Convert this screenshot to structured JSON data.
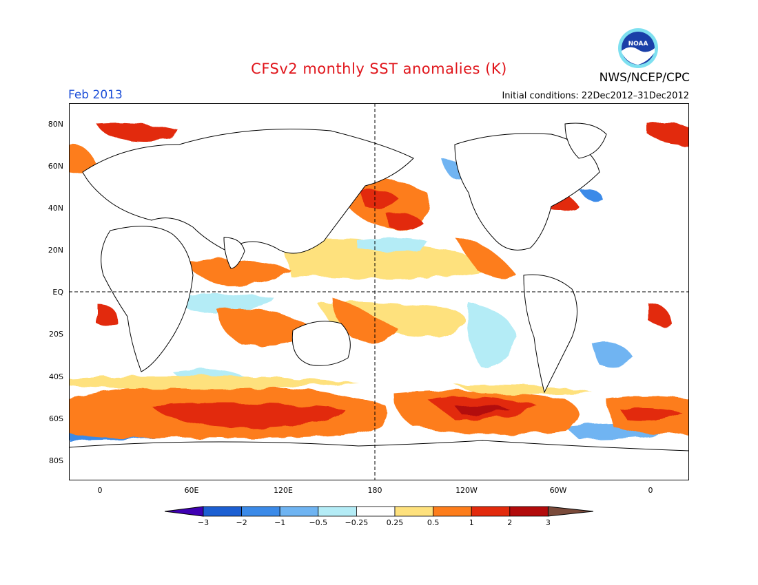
{
  "title": "CFSv2 monthly SST anomalies (K)",
  "month_label": "Feb 2013",
  "init_label": "Initial conditions: 22Dec2012–31Dec2012",
  "org_label": "NWS/NCEP/CPC",
  "logo_text": "NOAA",
  "lat_labels": [
    "80N",
    "60N",
    "40N",
    "20N",
    "EQ",
    "20S",
    "40S",
    "60S",
    "80S"
  ],
  "lon_labels": [
    "0",
    "60E",
    "120E",
    "180",
    "120W",
    "60W",
    "0"
  ],
  "colorbar": {
    "ticks": [
      "−3",
      "−2",
      "−1",
      "−0.5",
      "−0.25",
      "0.25",
      "0.5",
      "1",
      "2",
      "3"
    ],
    "colors": [
      "#3f00b3",
      "#1c5fd2",
      "#3b8ae8",
      "#6fb4f2",
      "#b4ecf6",
      "#ffffff",
      "#fee17d",
      "#fd7d1b",
      "#e22a0c",
      "#b20b0b",
      "#7a4a3a"
    ]
  },
  "colors": {
    "title": "#e0151b",
    "month": "#1d4fd8",
    "land": "#ffffff",
    "coast": "#000000"
  }
}
